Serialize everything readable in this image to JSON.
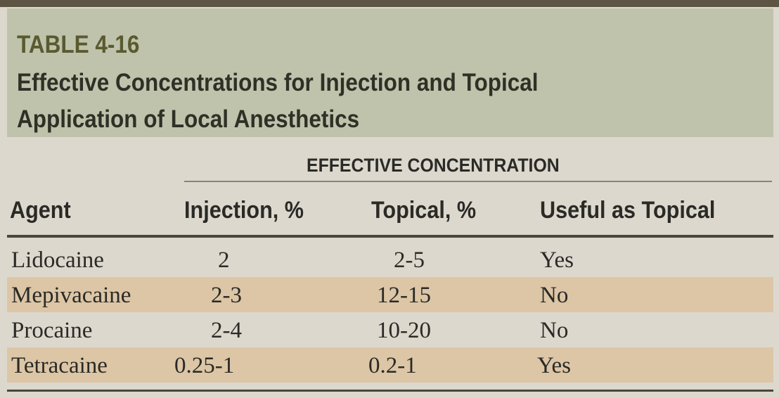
{
  "table": {
    "number": "TABLE 4-16",
    "title_line1": "Effective Concentrations for Injection and Topical",
    "title_line2": "Application of Local Anesthetics",
    "group_header": "EFFECTIVE CONCENTRATION",
    "columns": [
      "Agent",
      "Injection, %",
      "Topical, %",
      "Useful as Topical"
    ],
    "rows": [
      [
        "Lidocaine",
        "2",
        "2-5",
        "Yes"
      ],
      [
        "Mepivacaine",
        "2-3",
        "12-15",
        "No"
      ],
      [
        "Procaine",
        "2-4",
        "10-20",
        "No"
      ],
      [
        "Tetracaine",
        "0.25-1",
        "0.2-1",
        "Yes"
      ]
    ]
  }
}
